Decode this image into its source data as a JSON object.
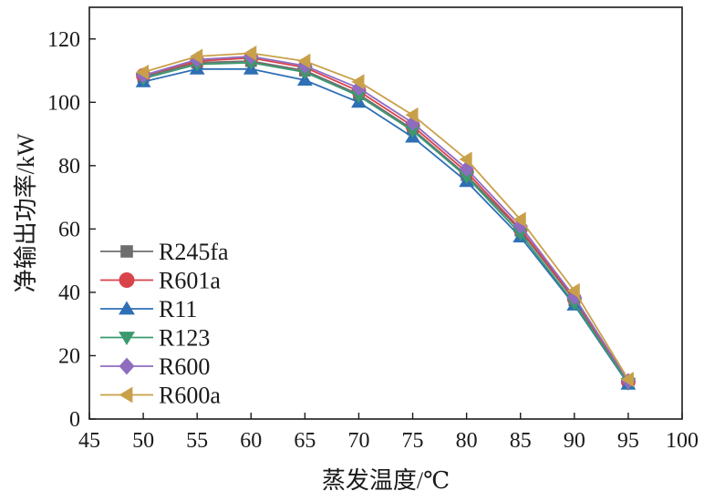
{
  "chart_data": {
    "type": "line",
    "xlabel": "蒸发温度/℃",
    "ylabel": "净输出功率/kW",
    "xlim": [
      45,
      100
    ],
    "ylim": [
      0,
      130
    ],
    "x_ticks": [
      "45",
      "50",
      "55",
      "60",
      "65",
      "70",
      "75",
      "80",
      "85",
      "90",
      "95",
      "100"
    ],
    "y_ticks": [
      "0",
      "20",
      "40",
      "60",
      "80",
      "100",
      "120"
    ],
    "x_tick_values": [
      45,
      50,
      55,
      60,
      65,
      70,
      75,
      80,
      85,
      90,
      95,
      100
    ],
    "y_tick_values": [
      0,
      20,
      40,
      60,
      80,
      100,
      120
    ],
    "grid": false,
    "legend_position": "bottom-left",
    "x": [
      50,
      55,
      60,
      65,
      70,
      75,
      80,
      85,
      90,
      95
    ],
    "series": [
      {
        "name": "R245fa",
        "color": "#6e6e6e",
        "marker": "square",
        "values": [
          108.0,
          112.5,
          113.0,
          110.0,
          102.5,
          91.5,
          77.0,
          59.5,
          37.5,
          11.5
        ]
      },
      {
        "name": "R601a",
        "color": "#d9434a",
        "marker": "circle",
        "values": [
          108.5,
          113.0,
          114.0,
          111.0,
          103.5,
          92.5,
          78.0,
          60.0,
          38.0,
          11.8
        ]
      },
      {
        "name": "R11",
        "color": "#2e6fb5",
        "marker": "triangle-up",
        "values": [
          106.5,
          110.5,
          110.5,
          107.0,
          100.0,
          89.0,
          75.0,
          57.5,
          36.0,
          11.0
        ]
      },
      {
        "name": "R123",
        "color": "#3a9a6e",
        "marker": "triangle-down",
        "values": [
          107.5,
          112.0,
          112.5,
          109.5,
          102.0,
          91.0,
          76.5,
          58.5,
          36.5,
          11.2
        ]
      },
      {
        "name": "R600",
        "color": "#8f6cc0",
        "marker": "diamond",
        "values": [
          108.5,
          113.5,
          114.5,
          111.5,
          104.5,
          93.5,
          79.0,
          61.0,
          38.5,
          12.0
        ]
      },
      {
        "name": "R600a",
        "color": "#c9a04a",
        "marker": "triangle-left",
        "values": [
          109.5,
          114.5,
          115.5,
          113.0,
          106.5,
          96.0,
          82.0,
          63.0,
          40.5,
          12.5
        ]
      }
    ]
  }
}
